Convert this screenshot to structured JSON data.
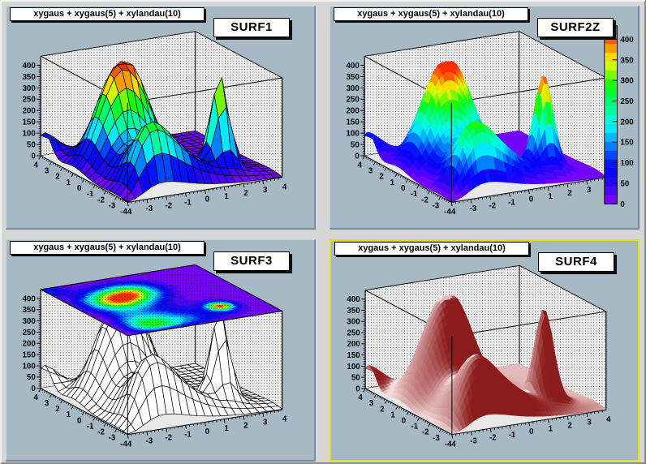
{
  "window": {
    "bg": "#d6d6d6",
    "pad_bg": "#a7b9c5",
    "wall_color": "#ececec",
    "floor_color": "#e9e9e9",
    "highlight_border": "#e8e000"
  },
  "pads": [
    {
      "title": "xygaus + xygaus(5) + xylandau(10)",
      "label": "SURF1",
      "style": "surf1",
      "selected": false,
      "has_palette": false
    },
    {
      "title": "xygaus + xygaus(5) + xylandau(10)",
      "label": "SURF2Z",
      "style": "surf2z",
      "selected": false,
      "has_palette": true
    },
    {
      "title": "xygaus + xygaus(5) + xylandau(10)",
      "label": "SURF3",
      "style": "surf3",
      "selected": false,
      "has_palette": false
    },
    {
      "title": "xygaus + xygaus(5) + xylandau(10)",
      "label": "SURF4",
      "style": "surf4",
      "selected": true,
      "has_palette": false
    }
  ],
  "axes": {
    "x": {
      "range": [
        -4,
        4
      ],
      "tick_values": [
        -3,
        -2,
        -1,
        0,
        1,
        2,
        3,
        4
      ],
      "tick_labels": [
        "-3",
        "-2",
        "-1",
        "0",
        "1",
        "2",
        "3",
        "4"
      ],
      "minor_step": 0.2
    },
    "y": {
      "range": [
        -4,
        4
      ],
      "tick_values": [
        4,
        3,
        2,
        1,
        0,
        -1,
        -2,
        -3
      ],
      "tick_labels": [
        "4",
        "3",
        "2",
        "1",
        "0",
        "-1",
        "-2",
        "-3"
      ],
      "minor_step": 0.2
    },
    "z": {
      "range": [
        0,
        440
      ],
      "tick_values": [
        0,
        50,
        100,
        150,
        200,
        250,
        300,
        350,
        400
      ],
      "tick_labels": [
        "0",
        "50",
        "100",
        "150",
        "200",
        "250",
        "300",
        "350",
        "400"
      ],
      "minor_step": 10
    },
    "corner_label": "-44"
  },
  "palette_bar": {
    "tick_values": [
      0,
      50,
      100,
      150,
      200,
      250,
      300,
      350,
      400
    ],
    "tick_labels": [
      "0",
      "50",
      "100",
      "150",
      "200",
      "250",
      "300",
      "350",
      "400"
    ],
    "vmax": 433
  },
  "chart_data": {
    "type": "heatmap",
    "subtype": "3d-surface-quartet",
    "title": "xygaus + xygaus(5) + xylandau(10)",
    "x_range": [
      -4,
      4
    ],
    "y_range": [
      -4,
      4
    ],
    "z_range": [
      0,
      440
    ],
    "z_ticks": [
      0,
      50,
      100,
      150,
      200,
      250,
      300,
      350,
      400
    ],
    "contour_levels": 20,
    "panels": [
      {
        "name": "SURF1",
        "description": "color-banded surface with black mesh"
      },
      {
        "name": "SURF2Z",
        "description": "smooth color surface with z color palette bar"
      },
      {
        "name": "SURF3",
        "description": "white wireframe surface with 2D color contour on box top"
      },
      {
        "name": "SURF4",
        "description": "red Gouraud-shaded surface"
      }
    ],
    "peaks": [
      {
        "type": "gaus",
        "A": 340,
        "cx": -1.8,
        "cy": 1.0,
        "sx": 1.0,
        "sy": 1.0
      },
      {
        "type": "gaus",
        "A": 260,
        "cx": -0.5,
        "cy": 1.7,
        "sx": 0.9,
        "sy": 0.9
      },
      {
        "type": "gaus",
        "A": 400,
        "cx": 1.9,
        "cy": -2.0,
        "sx": 0.42,
        "sy": 0.45
      },
      {
        "type": "landau",
        "A": 300,
        "cx": -2.1,
        "cy": -2.85,
        "sx": 0.8,
        "sy": 0.65
      },
      {
        "type": "gaus",
        "A": 115,
        "cx": -4.2,
        "cy": 3.6,
        "sx": 0.8,
        "sy": 0.6
      }
    ],
    "palette_stops": [
      [
        0,
        272
      ],
      [
        0.12,
        248
      ],
      [
        0.24,
        234
      ],
      [
        0.36,
        200
      ],
      [
        0.48,
        170
      ],
      [
        0.58,
        145
      ],
      [
        0.66,
        120
      ],
      [
        0.74,
        85
      ],
      [
        0.8,
        60
      ],
      [
        0.86,
        42
      ],
      [
        0.92,
        22
      ],
      [
        1,
        4
      ]
    ],
    "grid": {
      "surf1": 20,
      "surf2z": 44,
      "surf3": 20,
      "surf4": 44,
      "contour": 44
    },
    "shade_colors": {
      "dark": [
        140,
        28,
        28
      ],
      "light": [
        255,
        236,
        236
      ]
    }
  }
}
